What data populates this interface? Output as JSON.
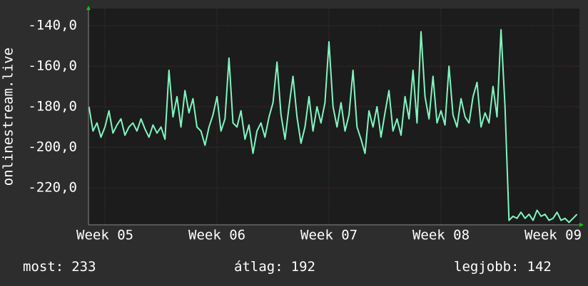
{
  "chart_data": {
    "type": "line",
    "y_label": "onlinestream.live",
    "x": [
      -1,
      -0.75,
      -0.5,
      -0.25,
      0,
      0.25,
      0.5,
      0.75,
      1,
      1.25,
      1.5,
      1.75,
      2,
      2.25,
      2.5,
      2.75,
      3,
      3.25,
      3.5,
      3.75,
      4,
      4.25,
      4.5,
      4.75,
      5,
      5.25,
      5.5,
      5.75,
      6,
      6.25,
      6.5,
      6.75,
      7,
      7.25,
      7.5,
      7.75,
      8,
      8.25,
      8.5,
      8.75,
      9,
      9.25,
      9.5,
      9.75,
      10,
      10.25,
      10.5,
      10.75,
      11,
      11.25,
      11.5,
      11.75,
      12,
      12.25,
      12.5,
      12.75,
      13,
      13.25,
      13.5,
      13.75,
      14,
      14.25,
      14.5,
      14.75,
      15,
      15.25,
      15.5,
      15.75,
      16,
      16.25,
      16.5,
      16.75,
      17,
      17.25,
      17.5,
      17.75,
      18,
      18.25,
      18.5,
      18.75,
      19,
      19.25,
      19.5,
      19.75,
      20,
      20.25,
      20.5,
      20.75,
      21,
      21.25,
      21.5,
      21.75,
      22,
      22.25,
      22.5,
      22.75,
      23,
      23.25,
      23.5,
      23.75,
      24,
      24.25,
      24.5,
      24.75,
      25,
      25.25,
      25.5,
      25.75,
      26,
      26.25,
      26.5,
      26.75,
      27,
      27.25,
      27.5,
      27.75,
      28,
      28.25,
      28.5,
      28.75,
      29,
      29.25,
      29.5
    ],
    "series": [
      {
        "color": "#80f5c0",
        "values": [
          -180,
          -192,
          -188,
          -195,
          -190,
          -182,
          -193,
          -189,
          -186,
          -194,
          -190,
          -188,
          -192,
          -186,
          -191,
          -195,
          -189,
          -193,
          -190,
          -196,
          -162,
          -185,
          -175,
          -190,
          -172,
          -183,
          -176,
          -190,
          -192,
          -199,
          -190,
          -184,
          -175,
          -192,
          -186,
          -156,
          -188,
          -190,
          -182,
          -196,
          -189,
          -203,
          -192,
          -188,
          -195,
          -185,
          -178,
          -158,
          -184,
          -196,
          -180,
          -165,
          -185,
          -198,
          -190,
          -175,
          -192,
          -180,
          -188,
          -178,
          -148,
          -180,
          -190,
          -178,
          -192,
          -184,
          -162,
          -190,
          -196,
          -203,
          -182,
          -190,
          -180,
          -195,
          -183,
          -172,
          -192,
          -186,
          -194,
          -175,
          -186,
          -162,
          -188,
          -143,
          -175,
          -186,
          -165,
          -188,
          -182,
          -189,
          -160,
          -184,
          -190,
          -176,
          -185,
          -188,
          -175,
          -168,
          -190,
          -183,
          -188,
          -170,
          -185,
          -142,
          -180,
          -236,
          -234,
          -235,
          -232,
          -235,
          -233,
          -236,
          -231,
          -234,
          -233,
          -236,
          -235,
          -232,
          -236,
          -235,
          -237,
          -235,
          -233
        ]
      }
    ],
    "xlim": [
      -1.03,
      29.65
    ],
    "xticks": [
      {
        "value": 0,
        "label": "Week 05"
      },
      {
        "value": 7,
        "label": "Week 06"
      },
      {
        "value": 14,
        "label": "Week 07"
      },
      {
        "value": 21,
        "label": "Week 08"
      },
      {
        "value": 28,
        "label": "Week 09"
      }
    ],
    "ylim": [
      -238.2,
      -131.6
    ],
    "yticks": [
      {
        "value": -140,
        "label": "-140,0"
      },
      {
        "value": -160,
        "label": "-160,0"
      },
      {
        "value": -180,
        "label": "-180,0"
      },
      {
        "value": -200,
        "label": "-200,0"
      },
      {
        "value": -220,
        "label": "-220,0"
      }
    ],
    "grid": true,
    "stats": [
      {
        "label": "most:",
        "value": 233
      },
      {
        "label": "átlag:",
        "value": 192
      },
      {
        "label": "legjobb:",
        "value": 142
      }
    ]
  }
}
